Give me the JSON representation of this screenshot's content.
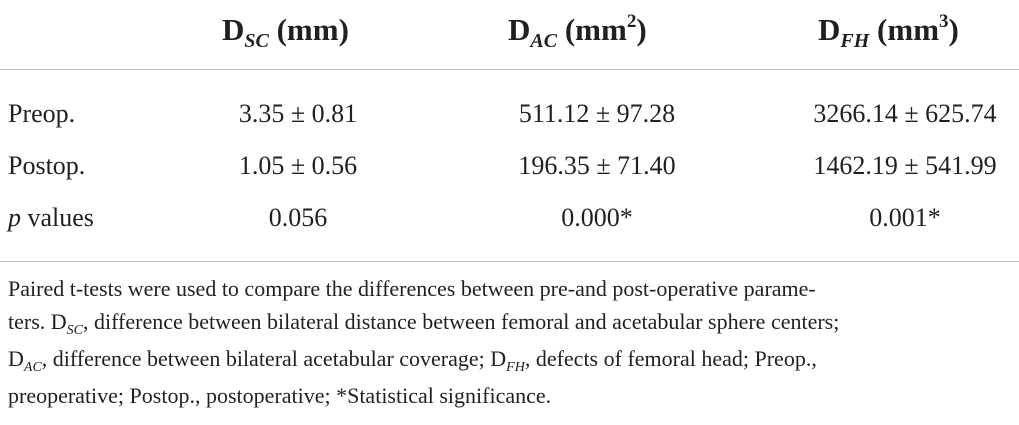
{
  "table": {
    "columns": [
      {
        "base": "D",
        "sub": "SC",
        "unit": "(mm)",
        "sup": ""
      },
      {
        "base": "D",
        "sub": "AC",
        "unit": "(mm",
        "sup": "2",
        "close": ")"
      },
      {
        "base": "D",
        "sub": "FH",
        "unit": "(mm",
        "sup": "3",
        "close": ")"
      }
    ],
    "rows": [
      {
        "label": "Preop.",
        "values": [
          "3.35 ± 0.81",
          "511.12 ± 97.28",
          "3266.14 ± 625.74"
        ]
      },
      {
        "label": "Postop.",
        "values": [
          "1.05 ± 0.56",
          "196.35 ± 71.40",
          "1462.19 ± 541.99"
        ]
      },
      {
        "label_italic": "p",
        "label": " values",
        "values": [
          "0.056",
          "0.000*",
          "0.001*"
        ]
      }
    ]
  },
  "footnote": {
    "line1": "Paired t-tests were used to compare the differences between pre-and post-operative parame-",
    "line2_a": "ters. D",
    "line2_sub": "SC",
    "line2_b": ", difference between bilateral distance between femoral and acetabular sphere centers;",
    "line3_a": "D",
    "line3_sub": "AC",
    "line3_b": ", difference between bilateral acetabular coverage; D",
    "line3_sub2": "FH",
    "line3_c": ", defects of femoral head; Preop.,",
    "line4": "preoperative; Postop., postoperative; *Statistical significance."
  }
}
